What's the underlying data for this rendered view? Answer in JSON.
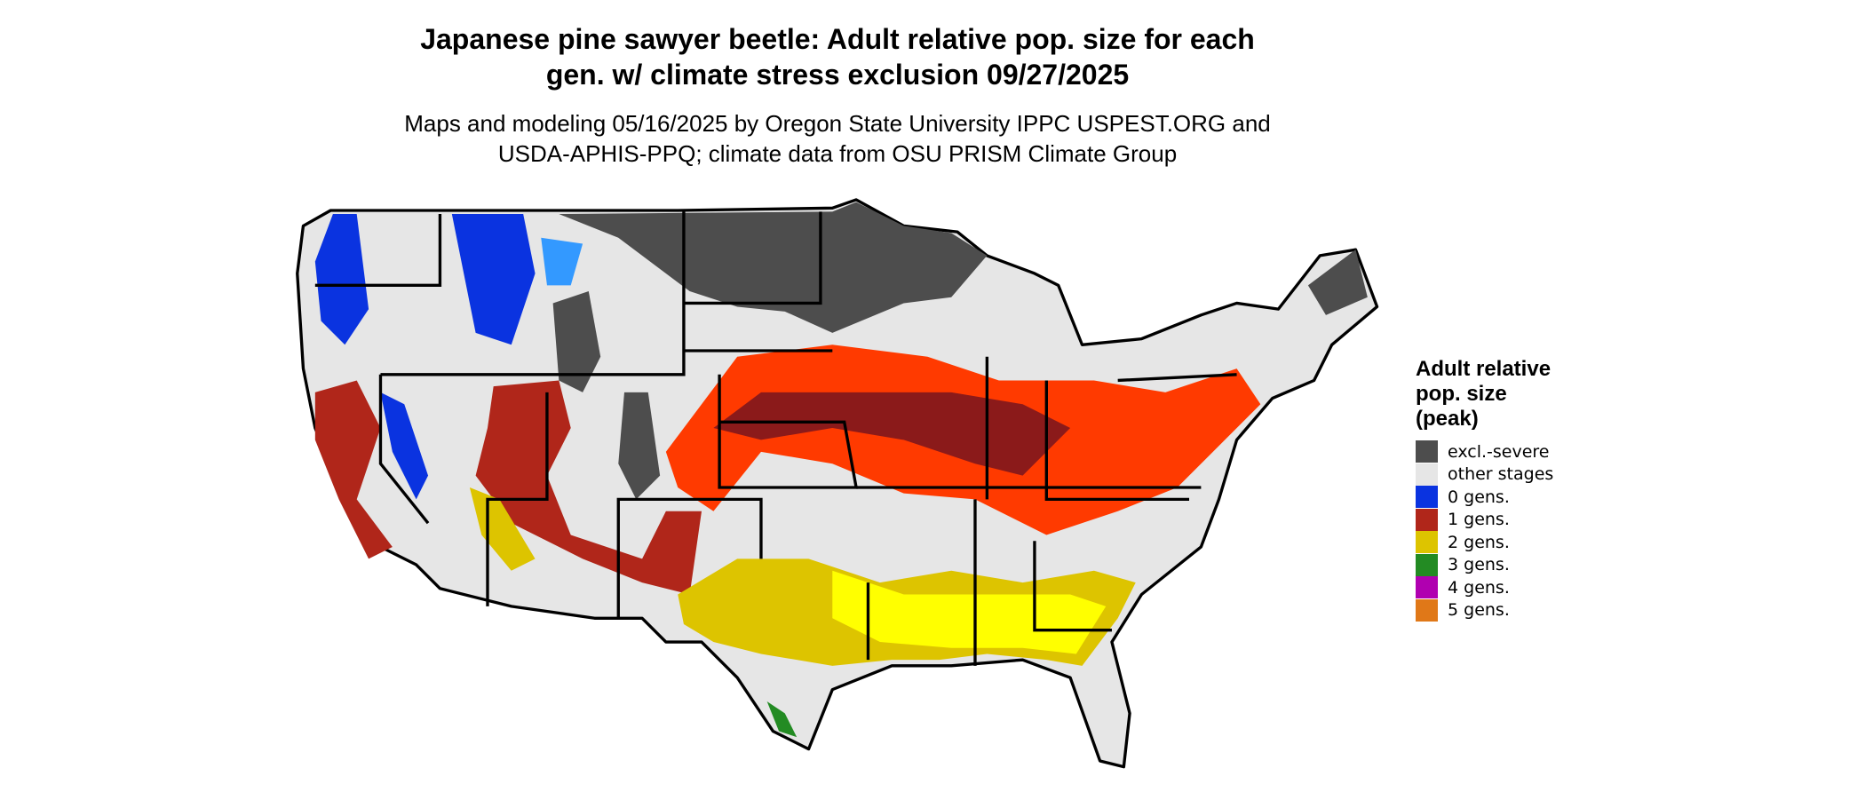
{
  "title_lines": [
    "Japanese pine sawyer beetle: Adult relative pop. size for each",
    "gen. w/ climate stress exclusion 09/27/2025"
  ],
  "subtitle_lines": [
    "Maps and modeling 05/16/2025 by Oregon State University IPPC USPEST.ORG and",
    "USDA-APHIS-PPQ; climate data from OSU PRISM Climate Group"
  ],
  "legend": {
    "title_lines": [
      "Adult relative",
      "pop. size",
      "(peak)"
    ],
    "items": [
      {
        "label": "excl.-severe",
        "color": "#4d4d4d"
      },
      {
        "label": "other stages",
        "color": "#e6e6e6"
      },
      {
        "label": "0 gens.",
        "color": "#0a33e0"
      },
      {
        "label": "1 gens.",
        "color": "#b0261a"
      },
      {
        "label": "2 gens.",
        "color": "#ddc400"
      },
      {
        "label": "3 gens.",
        "color": "#238b23"
      },
      {
        "label": "4 gens.",
        "color": "#b000b0"
      },
      {
        "label": "5 gens.",
        "color": "#e07818"
      }
    ]
  }
}
